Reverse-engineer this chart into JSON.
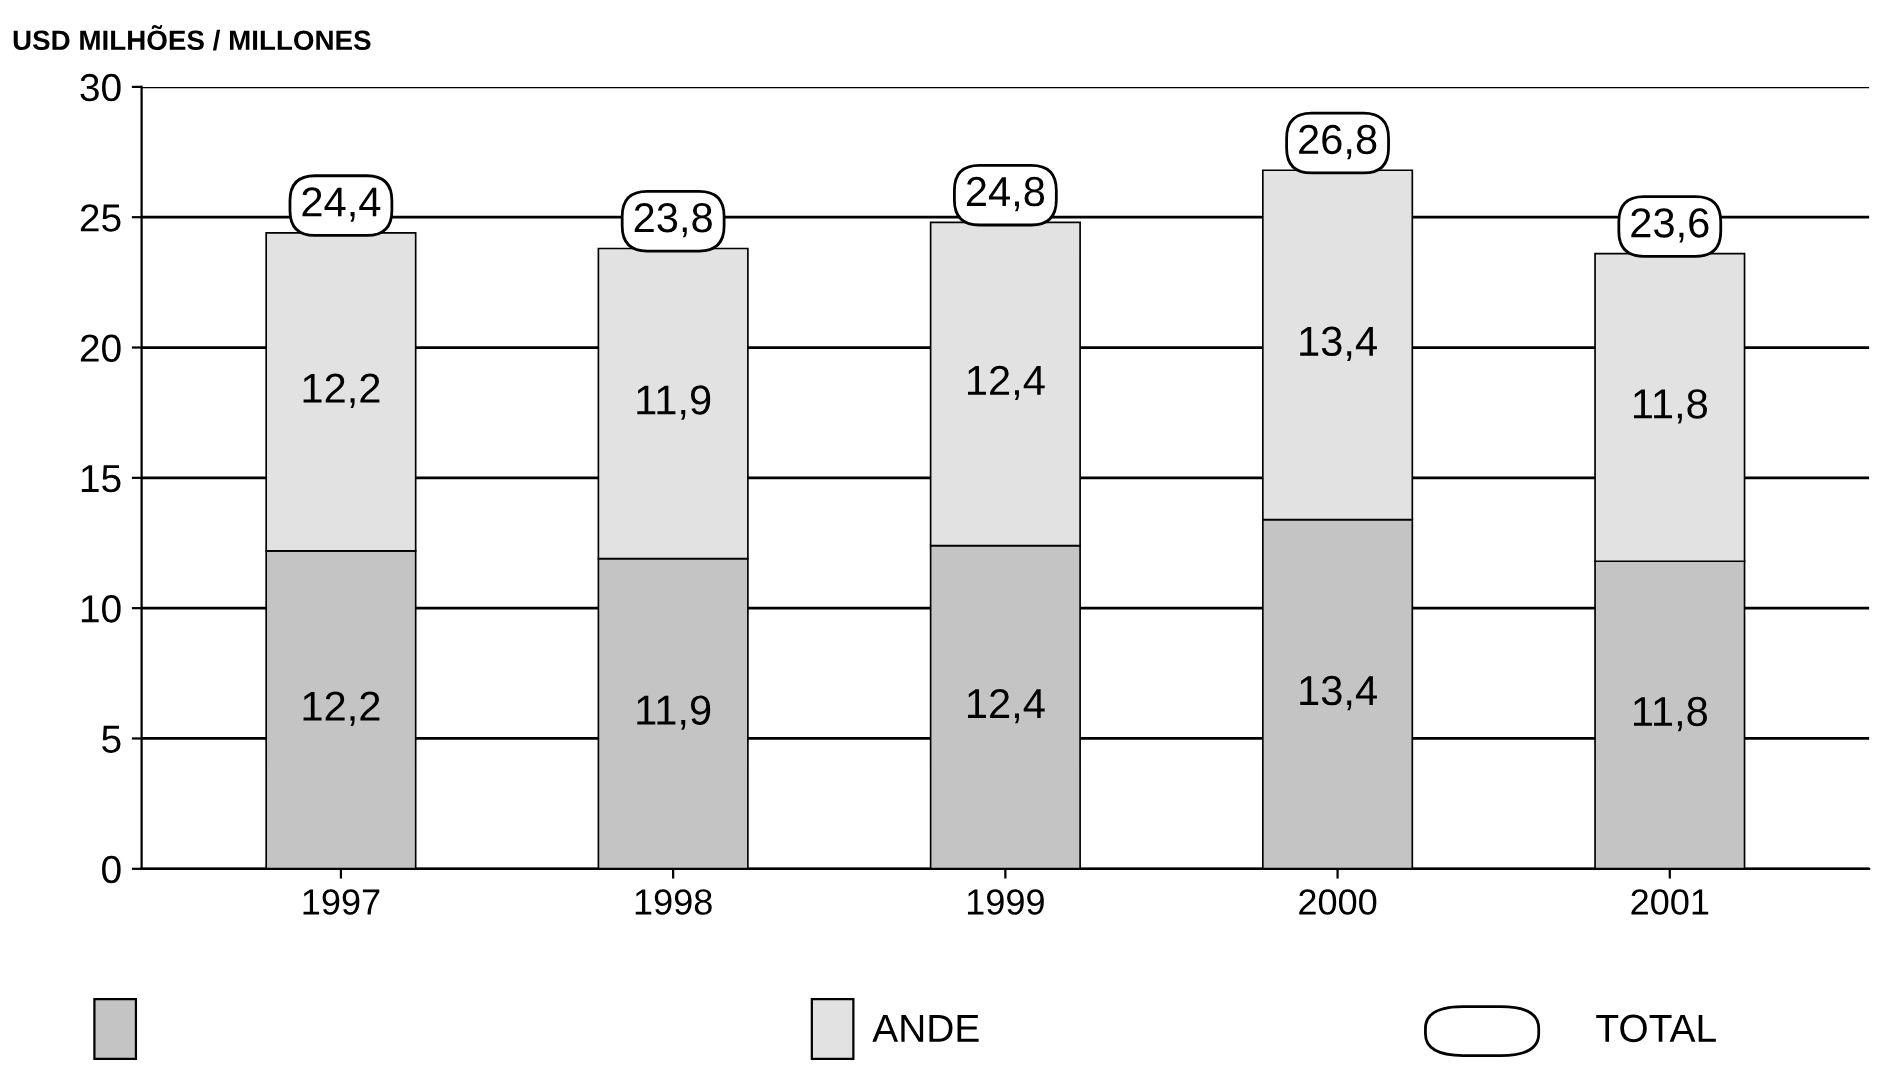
{
  "chart_data": {
    "type": "bar",
    "stacked": true,
    "ylabel": "USD MILHÕES / MILLONES",
    "categories": [
      "1997",
      "1998",
      "1999",
      "2000",
      "2001"
    ],
    "series": [
      {
        "color": "#c4c4c4",
        "values": [
          12.2,
          11.9,
          12.4,
          13.4,
          11.8
        ],
        "value_labels": [
          "12,2",
          "11,9",
          "12,4",
          "13,4",
          "11,8"
        ]
      },
      {
        "name": "ANDE",
        "color": "#e2e2e2",
        "values": [
          12.2,
          11.9,
          12.4,
          13.4,
          11.8
        ],
        "value_labels": [
          "12,2",
          "11,9",
          "12,4",
          "13,4",
          "11,8"
        ]
      }
    ],
    "totals": [
      "24,4",
      "23,8",
      "24,8",
      "26,8",
      "23,6"
    ],
    "annotations": [
      "TOTAL"
    ],
    "ylim": [
      0,
      30
    ],
    "yticks": [
      0,
      5,
      10,
      15,
      20,
      25,
      30
    ],
    "grid": "y",
    "legend": "bottom"
  }
}
